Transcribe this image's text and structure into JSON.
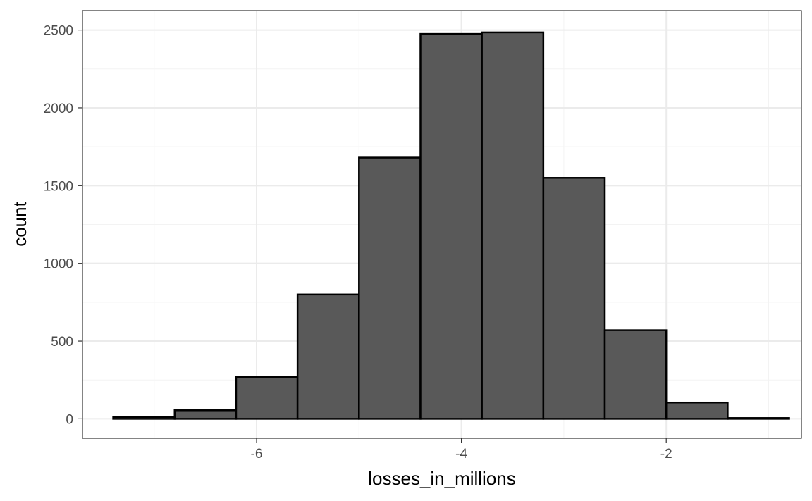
{
  "chart_data": {
    "type": "bar",
    "subtype": "histogram",
    "title": "",
    "xlabel": "losses_in_millions",
    "ylabel": "count",
    "xlim": [
      -7.7,
      -0.68
    ],
    "ylim": [
      -125,
      2625
    ],
    "x_ticks": [
      -6,
      -4,
      -2
    ],
    "y_ticks": [
      0,
      500,
      1000,
      1500,
      2000,
      2500
    ],
    "grid": true,
    "legend": "none",
    "bar_fill": "#595959",
    "bar_outline": "#000000",
    "bins": [
      {
        "x0": -7.4,
        "x1": -6.8,
        "count": 12
      },
      {
        "x0": -6.8,
        "x1": -6.2,
        "count": 55
      },
      {
        "x0": -6.2,
        "x1": -5.6,
        "count": 270
      },
      {
        "x0": -5.6,
        "x1": -5.0,
        "count": 800
      },
      {
        "x0": -5.0,
        "x1": -4.4,
        "count": 1680
      },
      {
        "x0": -4.4,
        "x1": -3.8,
        "count": 2475
      },
      {
        "x0": -3.8,
        "x1": -3.2,
        "count": 2485
      },
      {
        "x0": -3.2,
        "x1": -2.6,
        "count": 1550
      },
      {
        "x0": -2.6,
        "x1": -2.0,
        "count": 570
      },
      {
        "x0": -2.0,
        "x1": -1.4,
        "count": 105
      },
      {
        "x0": -1.4,
        "x1": -0.8,
        "count": 5
      }
    ]
  }
}
